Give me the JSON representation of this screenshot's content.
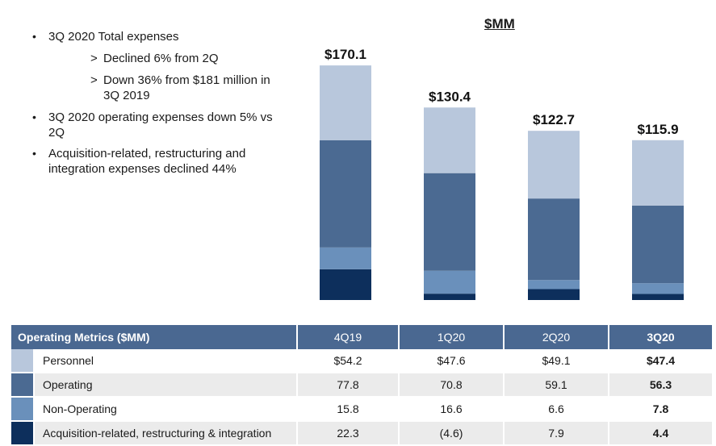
{
  "bullets": [
    {
      "text": "3Q 2020 Total expenses",
      "sub": [
        "Declined 6% from 2Q",
        "Down 36% from $181 million in 3Q 2019"
      ]
    },
    {
      "text": "3Q 2020 operating expenses down 5% vs 2Q",
      "sub": []
    },
    {
      "text": "Acquisition-related, restructuring and integration expenses declined 44%",
      "sub": []
    }
  ],
  "chart_data": {
    "type": "bar",
    "stacked": true,
    "unit_label": "$MM",
    "categories": [
      "4Q19",
      "1Q20",
      "2Q20",
      "3Q20"
    ],
    "totals_labels": [
      "$170.1",
      "$130.4",
      "$122.7",
      "$115.9"
    ],
    "series": [
      {
        "name": "Acquisition-related, restructuring & integration",
        "values": [
          22.3,
          -4.6,
          7.9,
          4.4
        ],
        "color": "#0d2f5c"
      },
      {
        "name": "Non-Operating",
        "values": [
          15.8,
          16.6,
          6.6,
          7.8
        ],
        "color": "#6a90bb"
      },
      {
        "name": "Operating",
        "values": [
          77.8,
          70.8,
          59.1,
          56.3
        ],
        "color": "#4b6a92"
      },
      {
        "name": "Personnel",
        "values": [
          54.2,
          47.6,
          49.1,
          47.4
        ],
        "color": "#b8c7dc"
      }
    ],
    "ylim": [
      0,
      200
    ],
    "grid": false
  },
  "table": {
    "header_label": "Operating Metrics ($MM)",
    "columns": [
      "4Q19",
      "1Q20",
      "2Q20",
      "3Q20"
    ],
    "rows": [
      {
        "label": "Personnel",
        "color": "#b8c7dc",
        "values": [
          "$54.2",
          "$47.6",
          "$49.1",
          "$47.4"
        ]
      },
      {
        "label": "Operating",
        "color": "#4b6a92",
        "values": [
          "77.8",
          "70.8",
          "59.1",
          "56.3"
        ]
      },
      {
        "label": "Non-Operating",
        "color": "#6a90bb",
        "values": [
          "15.8",
          "16.6",
          "6.6",
          "7.8"
        ]
      },
      {
        "label": "Acquisition-related, restructuring & integration",
        "color": "#0d2f5c",
        "values": [
          "22.3",
          "(4.6)",
          "7.9",
          "4.4"
        ]
      }
    ]
  }
}
